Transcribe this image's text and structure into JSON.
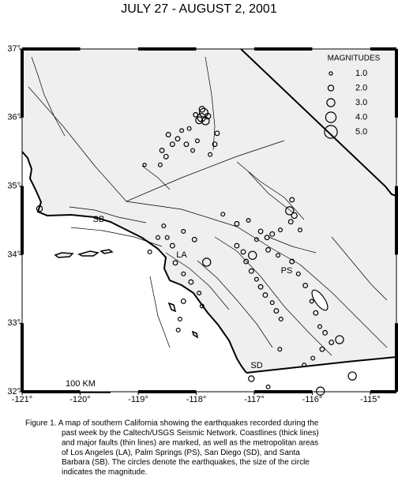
{
  "title": "JULY 27 - AUGUST 2, 2001",
  "map": {
    "xlim": [
      -121,
      -114.55
    ],
    "ylim": [
      32,
      37
    ],
    "xticks": [
      {
        "value": -121,
        "label": "-121°"
      },
      {
        "value": -120,
        "label": "-120°"
      },
      {
        "value": -119,
        "label": "-119°"
      },
      {
        "value": -118,
        "label": "-118°"
      },
      {
        "value": -117,
        "label": "-117°"
      },
      {
        "value": -116,
        "label": "-116°"
      },
      {
        "value": -115,
        "label": "-115°"
      }
    ],
    "yticks": [
      {
        "value": 32,
        "label": "32°"
      },
      {
        "value": 33,
        "label": "33°"
      },
      {
        "value": 34,
        "label": "34°"
      },
      {
        "value": 35,
        "label": "35°"
      },
      {
        "value": 36,
        "label": "36°"
      },
      {
        "value": 37,
        "label": "37°"
      }
    ],
    "legend_title": "MAGNITUDES",
    "legend": [
      {
        "value": 1,
        "label": "1.0"
      },
      {
        "value": 2,
        "label": "2.0"
      },
      {
        "value": 3,
        "label": "3.0"
      },
      {
        "value": 4,
        "label": "4.0"
      },
      {
        "value": 5,
        "label": "5.0"
      }
    ],
    "cities": [
      "SB",
      "LA",
      "PS",
      "SD"
    ],
    "scale_label": "100 KM",
    "earthquakes": {
      "lon": [
        -117.91,
        -117.87,
        -117.95,
        -117.84,
        -117.9,
        -117.8,
        -118.01,
        -118.48,
        -118.41,
        -118.32,
        -118.25,
        -118.12,
        -118.59,
        -118.52,
        -118.62,
        -118.06,
        -118.17,
        -117.64,
        -117.68,
        -117.76,
        -117.98,
        -118.89,
        -116.39,
        -116.35,
        -116.31,
        -116.21,
        -116.37,
        -117.82,
        -117.03,
        -117.3,
        -117.19,
        -117.14,
        -117.05,
        -116.96,
        -116.89,
        -116.81,
        -116.69,
        -116.62,
        -116.54,
        -116.78,
        -116.69,
        -116.55,
        -116.89,
        -116.96,
        -116.76,
        -116.59,
        -116.35,
        -116.24,
        -116.12,
        -116.01,
        -115.94,
        -115.87,
        -115.78,
        -115.67,
        -115.83,
        -115.99,
        -116.14,
        -117.05,
        -115.86,
        -115.31,
        -115.53,
        -120.7,
        -118.56,
        -118.5,
        -118.41,
        -118.22,
        -118.03,
        -118.66,
        -118.8,
        -118.36,
        -118.22,
        -118.09,
        -117.95,
        -117.9,
        -118.22,
        -118.28,
        -118.31,
        -116.56,
        -116.76,
        -117.54,
        -117.3,
        -117.1
      ],
      "lat": [
        36.0,
        36.07,
        35.96,
        35.95,
        36.12,
        36.02,
        36.04,
        35.75,
        35.61,
        35.69,
        35.81,
        35.84,
        35.52,
        35.43,
        35.31,
        35.52,
        35.61,
        35.77,
        35.61,
        35.46,
        35.66,
        35.31,
        34.64,
        34.8,
        34.57,
        34.36,
        34.48,
        33.89,
        33.99,
        34.13,
        34.04,
        33.9,
        33.76,
        33.64,
        33.53,
        33.41,
        33.3,
        33.18,
        33.06,
        34.25,
        34.3,
        34.36,
        34.34,
        34.22,
        34.07,
        33.99,
        33.9,
        33.72,
        33.55,
        33.32,
        33.15,
        32.95,
        32.86,
        32.72,
        32.62,
        32.49,
        32.39,
        32.19,
        32.01,
        32.23,
        32.76,
        34.67,
        34.42,
        34.25,
        34.13,
        34.34,
        34.22,
        34.25,
        34.04,
        33.88,
        33.72,
        33.6,
        33.44,
        33.25,
        33.32,
        33.06,
        32.9,
        32.62,
        32.07,
        34.59,
        34.45,
        34.5
      ],
      "mag": [
        3.0,
        3.2,
        2.5,
        2.8,
        2.0,
        2.0,
        1.5,
        1.5,
        1.5,
        1.5,
        1.2,
        1.2,
        1.5,
        1.5,
        1.2,
        1.2,
        1.5,
        1.5,
        1.5,
        1.2,
        1.2,
        1.0,
        3.0,
        1.5,
        2.0,
        1.2,
        1.5,
        3.0,
        3.0,
        1.5,
        1.5,
        1.5,
        1.5,
        1.2,
        1.5,
        1.5,
        1.2,
        1.5,
        1.2,
        1.5,
        1.5,
        1.2,
        1.5,
        1.2,
        1.5,
        1.2,
        1.5,
        1.2,
        1.5,
        1.2,
        1.5,
        1.2,
        1.5,
        1.5,
        1.5,
        1.2,
        1.2,
        2.0,
        3.0,
        3.0,
        3.0,
        2.0,
        1.2,
        1.2,
        1.5,
        1.2,
        1.5,
        1.2,
        1.2,
        1.5,
        1.2,
        1.5,
        1.2,
        1.2,
        1.5,
        1.2,
        1.2,
        1.2,
        1.2,
        1.2,
        1.5,
        1.2
      ]
    }
  },
  "caption_lines": [
    "Figure 1. A map of southern California showing the earthquakes recorded during the",
    "past week by the Caltech/USGS Seismic Network.  Coastlines (thick lines)",
    "and major faults (thin lines) are marked, as well as the metropolitan areas",
    "of Los Angeles (LA), Palm Springs (PS), San Diego (SD), and Santa",
    "Barbara (SB).  The circles denote the earthquakes, the size of the circle",
    "indicates the magnitude."
  ]
}
